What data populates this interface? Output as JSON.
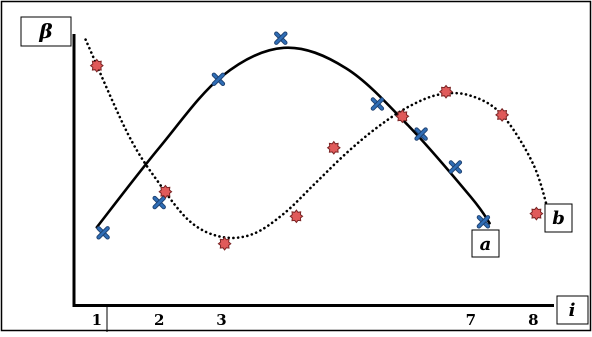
{
  "chart_data": {
    "type": "scatter",
    "title": "",
    "xlabel": "i",
    "ylabel": "β",
    "x_ticks": [
      {
        "label": "1",
        "x": 1
      },
      {
        "label": "2",
        "x": 2
      },
      {
        "label": "3",
        "x": 3
      },
      {
        "label": "7",
        "x": 7
      },
      {
        "label": "8",
        "x": 8
      }
    ],
    "xlim": [
      0.65,
      8.3
    ],
    "ylim": [
      0,
      10
    ],
    "grid": false,
    "series": [
      {
        "name": "a",
        "marker": "x",
        "color": "#2F6DB5",
        "points": [
          {
            "x": 1.1,
            "y": 2.6
          },
          {
            "x": 2.0,
            "y": 3.7
          },
          {
            "x": 2.95,
            "y": 8.2
          },
          {
            "x": 3.95,
            "y": 9.7
          },
          {
            "x": 5.5,
            "y": 7.3
          },
          {
            "x": 6.2,
            "y": 6.2
          },
          {
            "x": 6.75,
            "y": 5.0
          },
          {
            "x": 7.2,
            "y": 3.0
          }
        ],
        "curve": [
          {
            "x": 1.0,
            "y": 2.8
          },
          {
            "x": 2.0,
            "y": 5.7
          },
          {
            "x": 3.0,
            "y": 8.3
          },
          {
            "x": 4.0,
            "y": 9.35
          },
          {
            "x": 5.0,
            "y": 8.6
          },
          {
            "x": 6.0,
            "y": 6.5
          },
          {
            "x": 7.0,
            "y": 3.9
          },
          {
            "x": 7.3,
            "y": 2.95
          }
        ]
      },
      {
        "name": "b",
        "marker": "star",
        "color": "#E05A5A",
        "points": [
          {
            "x": 1.0,
            "y": 8.7
          },
          {
            "x": 2.1,
            "y": 4.1
          },
          {
            "x": 3.05,
            "y": 2.2
          },
          {
            "x": 4.2,
            "y": 3.2
          },
          {
            "x": 4.8,
            "y": 5.7
          },
          {
            "x": 5.9,
            "y": 6.85
          },
          {
            "x": 6.6,
            "y": 7.75
          },
          {
            "x": 7.5,
            "y": 6.9
          },
          {
            "x": 8.05,
            "y": 3.3
          }
        ],
        "curve": [
          {
            "x": 0.82,
            "y": 9.65
          },
          {
            "x": 1.5,
            "y": 6.2
          },
          {
            "x": 2.0,
            "y": 4.4
          },
          {
            "x": 2.5,
            "y": 3.0
          },
          {
            "x": 3.0,
            "y": 2.45
          },
          {
            "x": 3.5,
            "y": 2.55
          },
          {
            "x": 4.0,
            "y": 3.3
          },
          {
            "x": 4.5,
            "y": 4.4
          },
          {
            "x": 5.0,
            "y": 5.5
          },
          {
            "x": 5.5,
            "y": 6.45
          },
          {
            "x": 6.0,
            "y": 7.2
          },
          {
            "x": 6.5,
            "y": 7.65
          },
          {
            "x": 7.0,
            "y": 7.6
          },
          {
            "x": 7.5,
            "y": 6.9
          },
          {
            "x": 8.0,
            "y": 5.1
          },
          {
            "x": 8.25,
            "y": 3.3
          }
        ]
      }
    ],
    "annotations": [
      {
        "text": "a",
        "series": "a"
      },
      {
        "text": "b",
        "series": "b"
      }
    ]
  }
}
